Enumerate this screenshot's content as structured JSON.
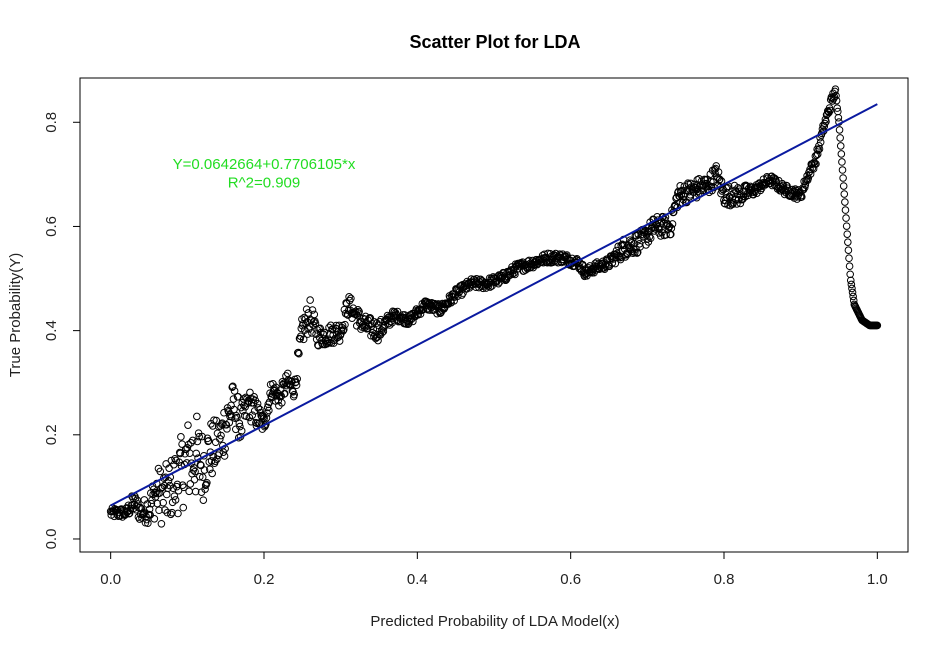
{
  "chart_data": {
    "type": "scatter",
    "title": "Scatter Plot for LDA",
    "xlabel": "Predicted Probability of LDA Model(x)",
    "ylabel": "True Probability(Y)",
    "xlim": [
      -0.04,
      1.04
    ],
    "ylim": [
      -0.025,
      0.885
    ],
    "xticks": [
      0.0,
      0.2,
      0.4,
      0.6,
      0.8,
      1.0
    ],
    "xtick_labels": [
      "0.0",
      "0.2",
      "0.4",
      "0.6",
      "0.8",
      "1.0"
    ],
    "yticks": [
      0.0,
      0.2,
      0.4,
      0.6,
      0.8
    ],
    "ytick_labels": [
      "0.0",
      "0.2",
      "0.4",
      "0.6",
      "0.8"
    ],
    "grid": false,
    "marker": "open-circle",
    "point_color": "#000000",
    "fit_line": {
      "intercept": 0.0642664,
      "slope": 0.7706105,
      "x_range": [
        0.0,
        1.0
      ],
      "color": "#0a1aa0"
    },
    "annotations": [
      {
        "text": "Y=0.0642664+0.7706105*x",
        "x": 0.2,
        "y": 0.71,
        "color": "#22dd22"
      },
      {
        "text": "R^2=0.909",
        "x": 0.2,
        "y": 0.675,
        "color": "#22dd22"
      }
    ],
    "trend_x": [
      0.0,
      0.02,
      0.03,
      0.04,
      0.05,
      0.06,
      0.07,
      0.08,
      0.09,
      0.1,
      0.11,
      0.12,
      0.13,
      0.14,
      0.15,
      0.16,
      0.17,
      0.18,
      0.19,
      0.2,
      0.21,
      0.22,
      0.23,
      0.24,
      0.25,
      0.26,
      0.27,
      0.28,
      0.3,
      0.31,
      0.32,
      0.33,
      0.35,
      0.37,
      0.39,
      0.41,
      0.43,
      0.45,
      0.47,
      0.49,
      0.51,
      0.53,
      0.55,
      0.57,
      0.59,
      0.61,
      0.62,
      0.63,
      0.65,
      0.67,
      0.69,
      0.71,
      0.73,
      0.74,
      0.76,
      0.78,
      0.79,
      0.8,
      0.82,
      0.84,
      0.86,
      0.88,
      0.9,
      0.91,
      0.92,
      0.93,
      0.94,
      0.945,
      0.95,
      0.955,
      0.96,
      0.965,
      0.97,
      0.98,
      0.99,
      1.0
    ],
    "trend_y": [
      0.05,
      0.05,
      0.07,
      0.05,
      0.06,
      0.09,
      0.08,
      0.1,
      0.12,
      0.15,
      0.16,
      0.14,
      0.17,
      0.18,
      0.22,
      0.26,
      0.22,
      0.26,
      0.24,
      0.22,
      0.29,
      0.27,
      0.3,
      0.29,
      0.4,
      0.43,
      0.39,
      0.39,
      0.4,
      0.45,
      0.43,
      0.41,
      0.4,
      0.43,
      0.42,
      0.45,
      0.44,
      0.47,
      0.49,
      0.49,
      0.5,
      0.52,
      0.53,
      0.54,
      0.54,
      0.53,
      0.51,
      0.52,
      0.53,
      0.56,
      0.57,
      0.6,
      0.6,
      0.66,
      0.67,
      0.68,
      0.7,
      0.66,
      0.66,
      0.67,
      0.69,
      0.67,
      0.66,
      0.7,
      0.73,
      0.79,
      0.84,
      0.86,
      0.8,
      0.7,
      0.6,
      0.5,
      0.45,
      0.42,
      0.41,
      0.41
    ],
    "noise_amplitude": [
      0.01,
      0.01,
      0.02,
      0.02,
      0.03,
      0.05,
      0.06,
      0.06,
      0.07,
      0.08,
      0.09,
      0.07,
      0.06,
      0.05,
      0.06,
      0.04,
      0.04,
      0.03,
      0.03,
      0.02,
      0.02,
      0.02,
      0.02,
      0.02,
      0.03,
      0.03,
      0.02,
      0.02,
      0.02,
      0.02,
      0.02,
      0.02,
      0.02,
      0.01,
      0.01,
      0.01,
      0.01,
      0.01,
      0.01,
      0.01,
      0.01,
      0.01,
      0.01,
      0.01,
      0.01,
      0.01,
      0.01,
      0.01,
      0.01,
      0.02,
      0.02,
      0.02,
      0.02,
      0.02,
      0.02,
      0.02,
      0.02,
      0.02,
      0.02,
      0.01,
      0.01,
      0.01,
      0.01,
      0.01,
      0.01,
      0.01,
      0.01,
      0.01,
      0.0,
      0.0,
      0.0,
      0.0,
      0.0,
      0.0,
      0.0,
      0.0
    ]
  }
}
